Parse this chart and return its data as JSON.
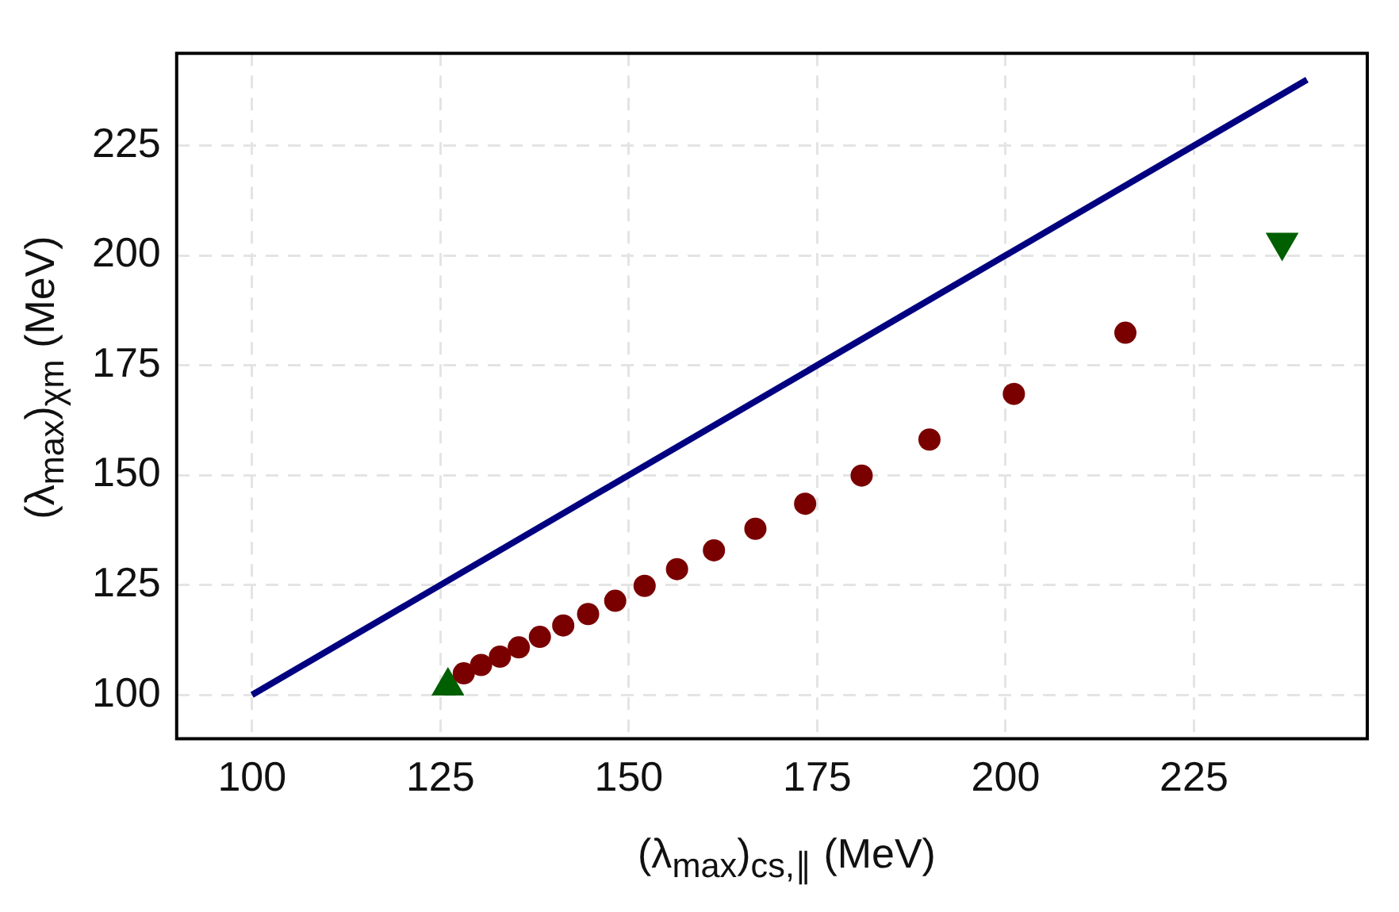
{
  "chart_data": {
    "type": "scatter",
    "xlabel": "(λ$_{max}$)$_{cs,∥}$ (MeV)",
    "ylabel": "(λ$_{max}$)$_{χm}$ (MeV)",
    "xlim": [
      90,
      248
    ],
    "ylim": [
      90,
      246
    ],
    "xticks": [
      100,
      125,
      150,
      175,
      200,
      225
    ],
    "yticks": [
      100,
      125,
      150,
      175,
      200,
      225
    ],
    "grid": true,
    "series": [
      {
        "type": "line",
        "color": "#000080",
        "x": [
          100,
          240
        ],
        "values": [
          100,
          240
        ],
        "marker": "none",
        "line_style": "solid"
      },
      {
        "type": "scatter",
        "color": "#7a0000",
        "marker": "circle",
        "x": [
          128.1,
          130.4,
          132.9,
          135.4,
          138.2,
          141.3,
          144.6,
          148.2,
          152.1,
          156.4,
          161.3,
          166.8,
          173.4,
          180.9,
          189.9,
          201.1,
          215.9
        ],
        "values": [
          104.9,
          106.8,
          108.7,
          110.8,
          113.2,
          115.8,
          118.4,
          121.4,
          124.8,
          128.6,
          132.9,
          137.8,
          143.5,
          149.9,
          158.1,
          168.5,
          182.4
        ]
      },
      {
        "type": "scatter",
        "color": "#005f00",
        "marker": "triangle",
        "x": [
          126.0
        ],
        "values": [
          102.0
        ]
      },
      {
        "type": "scatter",
        "color": "#005f00",
        "marker": "triangle-down",
        "x": [
          236.7
        ],
        "values": [
          203.0
        ]
      }
    ]
  }
}
